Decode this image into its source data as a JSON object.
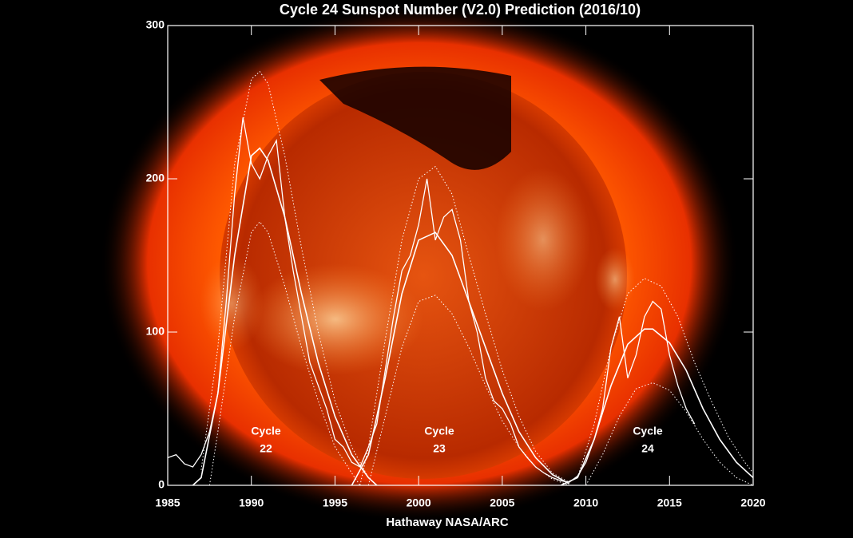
{
  "chart_data": {
    "type": "line",
    "title": "Cycle 24 Sunspot Number (V2.0) Prediction (2016/10)",
    "x_label": "Hathaway  NASA/ARC",
    "xlim": [
      1985,
      2020
    ],
    "xticks": [
      1985,
      1990,
      1995,
      2000,
      2005,
      2010,
      2015,
      2020
    ],
    "ylim": [
      0,
      300
    ],
    "yticks": [
      0,
      100,
      200,
      300
    ],
    "annotations": [
      [
        "Cycle",
        "22"
      ],
      [
        "Cycle",
        "23"
      ],
      [
        "Cycle",
        "24"
      ]
    ],
    "series": [
      {
        "color": "#ffffff",
        "style": "solid",
        "width": 1.3,
        "x": [
          1985,
          1985.5,
          1986,
          1986.5,
          1987,
          1987.5,
          1988,
          1988.5,
          1989,
          1989.5,
          1990,
          1990.5,
          1991,
          1991.5,
          1992,
          1992.5,
          1993,
          1993.5,
          1994,
          1994.5,
          1995,
          1995.5,
          1996,
          1996.5,
          1997,
          1997.5,
          1998,
          1998.5,
          1999,
          1999.5,
          2000,
          2000.5,
          2001,
          2001.5,
          2002,
          2002.5,
          2003,
          2003.5,
          2004,
          2004.5,
          2005,
          2005.5,
          2006,
          2006.5,
          2007,
          2007.5,
          2008,
          2008.5,
          2009,
          2009.5,
          2010,
          2010.5,
          2011,
          2011.5,
          2012,
          2012.5,
          2013,
          2013.5,
          2014,
          2014.5,
          2015,
          2015.5,
          2016,
          2016.5
        ],
        "values": [
          18,
          20,
          14,
          12,
          20,
          35,
          60,
          120,
          190,
          240,
          210,
          200,
          215,
          225,
          175,
          140,
          110,
          80,
          65,
          50,
          30,
          25,
          15,
          12,
          25,
          40,
          75,
          110,
          140,
          150,
          170,
          200,
          160,
          175,
          180,
          160,
          120,
          100,
          70,
          55,
          50,
          40,
          25,
          18,
          12,
          8,
          5,
          3,
          2,
          6,
          15,
          30,
          50,
          90,
          110,
          70,
          85,
          110,
          120,
          115,
          85,
          65,
          50,
          40
        ]
      },
      {
        "color": "#ffffff",
        "style": "solid",
        "width": 1.6,
        "x": [
          1986.5,
          1987,
          1988,
          1989,
          1990,
          1990.5,
          1991,
          1992,
          1993,
          1994,
          1995,
          1996,
          1997,
          1997.5
        ],
        "values": [
          0,
          5,
          60,
          150,
          215,
          220,
          212,
          175,
          125,
          80,
          45,
          20,
          5,
          0
        ]
      },
      {
        "color": "#ffffff",
        "style": "dotted",
        "width": 1,
        "x": [
          1987,
          1988,
          1989,
          1990,
          1990.5,
          1991,
          1992,
          1993,
          1994,
          1995,
          1996,
          1997
        ],
        "values": [
          10,
          90,
          210,
          265,
          270,
          262,
          215,
          155,
          100,
          55,
          25,
          5
        ]
      },
      {
        "color": "#ffffff",
        "style": "dotted",
        "width": 1,
        "x": [
          1987.5,
          1988,
          1989,
          1990,
          1990.5,
          1991,
          1992,
          1993,
          1994,
          1995,
          1996,
          1996.5
        ],
        "values": [
          0,
          35,
          110,
          165,
          172,
          165,
          130,
          90,
          55,
          25,
          8,
          0
        ]
      },
      {
        "color": "#ffffff",
        "style": "solid",
        "width": 1.6,
        "x": [
          1996,
          1997,
          1998,
          1999,
          2000,
          2001,
          2002,
          2003,
          2004,
          2005,
          2006,
          2007,
          2008,
          2009
        ],
        "values": [
          0,
          20,
          70,
          125,
          160,
          165,
          150,
          120,
          90,
          60,
          35,
          18,
          7,
          1
        ]
      },
      {
        "color": "#ffffff",
        "style": "dotted",
        "width": 1,
        "x": [
          1996.5,
          1997,
          1998,
          1999,
          2000,
          2001,
          2002,
          2003,
          2004,
          2005,
          2006,
          2007,
          2008,
          2009
        ],
        "values": [
          0,
          25,
          95,
          160,
          200,
          208,
          190,
          150,
          112,
          75,
          45,
          22,
          8,
          2
        ]
      },
      {
        "color": "#ffffff",
        "style": "dotted",
        "width": 1,
        "x": [
          1997,
          1998,
          1999,
          2000,
          2001,
          2002,
          2003,
          2004,
          2005,
          2006,
          2007,
          2008,
          2009
        ],
        "values": [
          0,
          45,
          90,
          120,
          124,
          112,
          90,
          65,
          42,
          25,
          12,
          4,
          0
        ]
      },
      {
        "color": "#ffffff",
        "style": "solid",
        "width": 1.6,
        "x": [
          2008.5,
          2009.5,
          2010.5,
          2011.5,
          2012.5,
          2013.5,
          2014,
          2015,
          2016,
          2017,
          2018,
          2019,
          2020
        ],
        "values": [
          0,
          5,
          30,
          65,
          92,
          102,
          102,
          93,
          75,
          50,
          30,
          15,
          5
        ]
      },
      {
        "color": "#ffffff",
        "style": "dotted",
        "width": 1,
        "x": [
          2009.5,
          2010.5,
          2011.5,
          2012.5,
          2013.5,
          2014.5,
          2015.5,
          2016.5,
          2017.5,
          2018.5,
          2019.5,
          2020
        ],
        "values": [
          5,
          40,
          90,
          125,
          135,
          130,
          110,
          80,
          55,
          32,
          15,
          8
        ]
      },
      {
        "color": "#ffffff",
        "style": "dotted",
        "width": 1,
        "x": [
          2010,
          2011,
          2012,
          2013,
          2014,
          2015,
          2016,
          2017,
          2018,
          2019,
          2020
        ],
        "values": [
          0,
          20,
          45,
          63,
          67,
          62,
          48,
          30,
          15,
          5,
          0
        ]
      }
    ]
  }
}
